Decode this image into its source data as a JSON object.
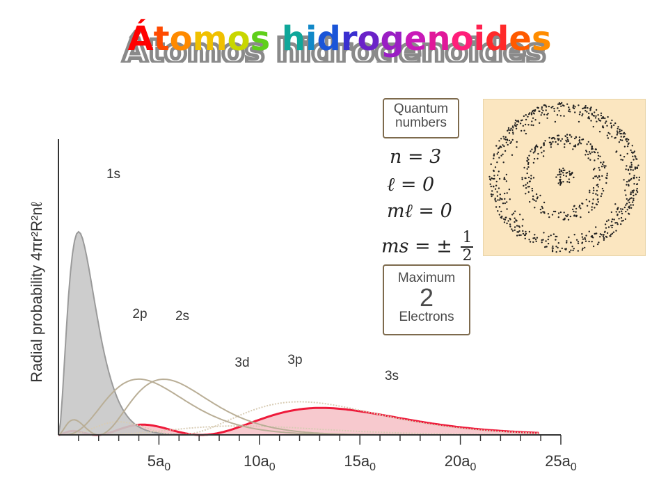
{
  "title": "Átomos hidrogenoides",
  "title_colors": [
    "#ff0000",
    "#ff4a00",
    "#ff8a00",
    "#f0c000",
    "#c8d600",
    "#5fcf1a",
    "#19b45a",
    "#0fa79a",
    "#1188c8",
    "#1a55d8",
    "#3a2fd0",
    "#6a22c8",
    "#9a1ec4",
    "#c81ab8",
    "#e0189a",
    "#ff1e7a",
    "#ff2250",
    "#ff2a2a",
    "#ff5a00",
    "#ff8c00"
  ],
  "quantum": {
    "box_label_line1": "Quantum",
    "box_label_line2": "numbers",
    "n": "n = 3",
    "l": "ℓ = 0",
    "ml": "mℓ = 0",
    "ms_prefix": "ms = ±",
    "ms_num": "1",
    "ms_den": "2",
    "max_line1": "Maximum",
    "max_value": "2",
    "max_line2": "Electrons"
  },
  "chart_data": {
    "type": "line",
    "ylabel": "Radial probability 4πr²R²nℓ",
    "x_tick_labels": [
      "5a0",
      "10a0",
      "15a0",
      "20a0",
      "25a0"
    ],
    "x_ticks": [
      5,
      10,
      15,
      20,
      25
    ],
    "xlim": [
      0,
      25
    ],
    "series": [
      {
        "name": "1s",
        "color": "#9a9a9a",
        "fill": "#c8c8c8",
        "peak_x": 1
      },
      {
        "name": "2p",
        "color": "#b9ae96",
        "peak_x": 4
      },
      {
        "name": "2s",
        "color": "#b9ae96",
        "peak_x": 5.2
      },
      {
        "name": "3d",
        "color": "#d8ccb4",
        "peak_x": 9
      },
      {
        "name": "3p",
        "color": "#d8ccb4",
        "peak_x": 12
      },
      {
        "name": "3s",
        "color": "#ee1a3a",
        "fill": "#f6bfc6",
        "peak_x": 13
      }
    ],
    "grid": false
  }
}
